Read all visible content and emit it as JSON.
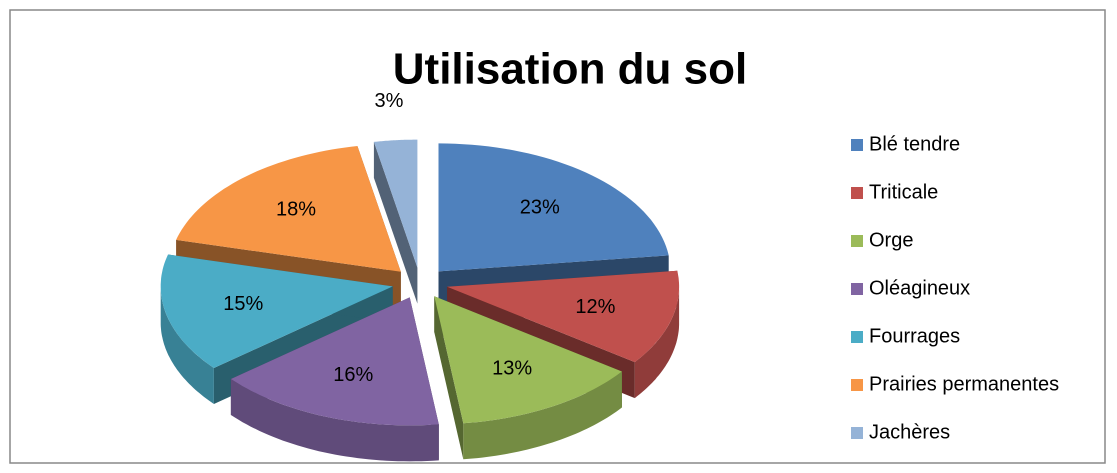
{
  "chart_data": {
    "type": "pie",
    "title": "Utilisation du sol",
    "categories": [
      "Blé tendre",
      "Triticale",
      "Orge",
      "Oléagineux",
      "Fourrages",
      "Prairies permanentes",
      "Jachères"
    ],
    "values": [
      23,
      12,
      13,
      16,
      15,
      18,
      3
    ],
    "value_labels": [
      "23%",
      "12%",
      "13%",
      "16%",
      "15%",
      "18%",
      "3%"
    ],
    "colors": [
      "#4f81bd",
      "#c0504d",
      "#9bbb59",
      "#8064a2",
      "#4bacc6",
      "#f79646",
      "#95b3d7"
    ],
    "legend": "right"
  }
}
